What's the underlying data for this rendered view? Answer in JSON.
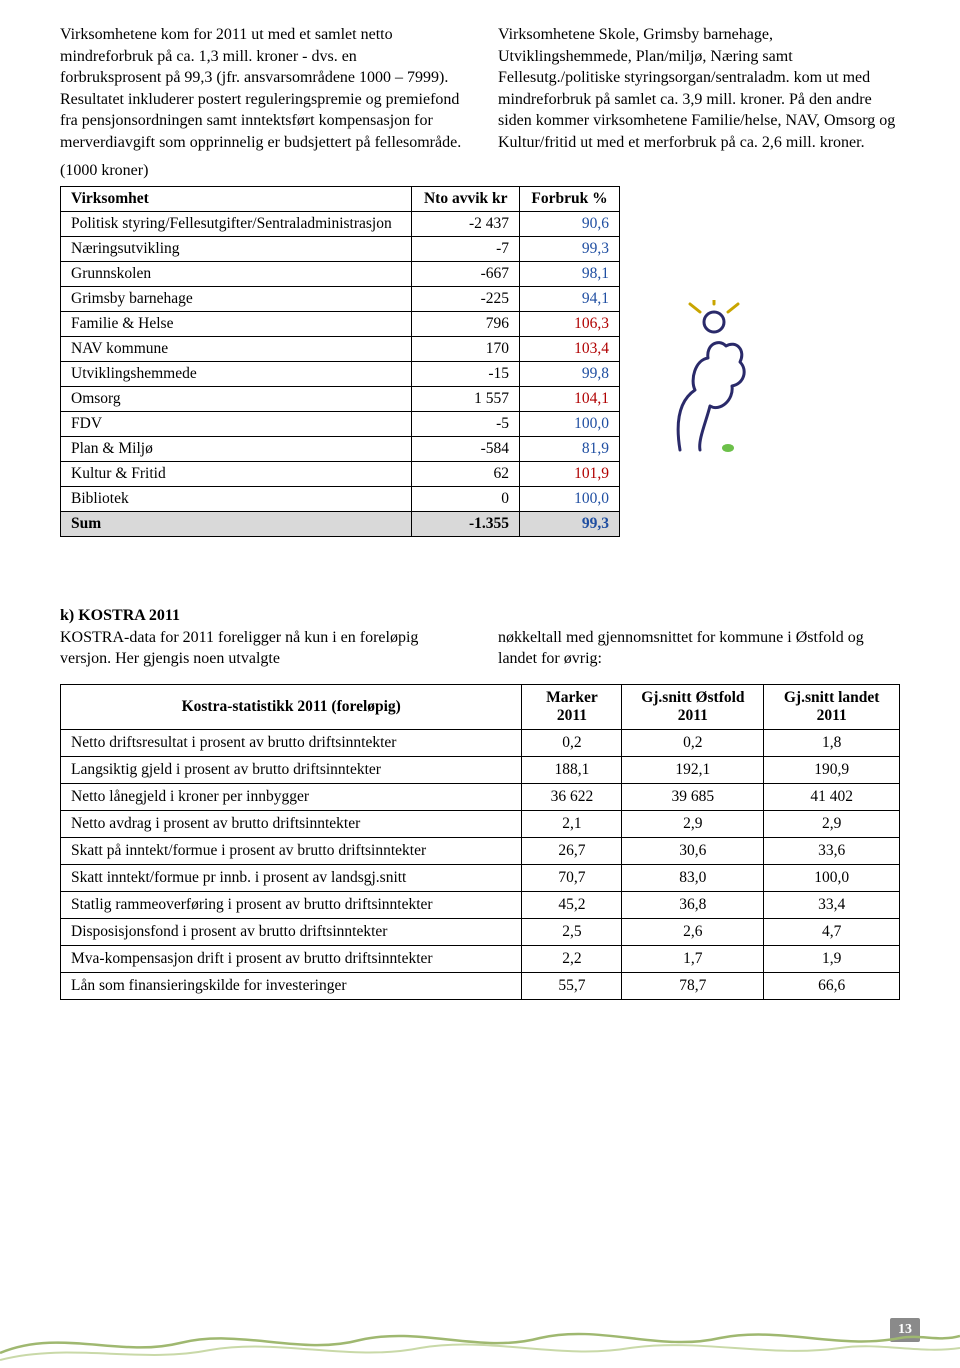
{
  "intro": {
    "left": "Virksomhetene kom for 2011 ut med et samlet netto mindreforbruk på ca. 1,3 mill. kroner - dvs. en forbruksprosent på 99,3 (jfr. ansvars­områdene 1000 – 7999). Resultatet inkluderer postert reguleringspremie og premiefond fra pensjonsordningen samt inntektsført kompen­sasjon for merverdiavgift som opprinnelig er budsjettert på fellesområde.",
    "right": "Virksomhetene Skole, Grimsby barnehage, Utviklingshemmede, Plan/miljø, Næring samt Fellesutg./politiske styringsorgan/sentraladm. kom ut med mindreforbruk på samlet ca. 3,9 mill. kroner. På den andre siden kommer virksomhetene Familie/helse, NAV, Omsorg og Kultur/fritid ut med et merforbruk på ca. 2,6 mill. kroner.",
    "note": "(1000 kroner)"
  },
  "table1": {
    "headers": {
      "h1": "Virksomhet",
      "h2": "Nto avvik kr",
      "h3": "Forbruk %"
    },
    "rows": [
      {
        "label": "Politisk styring/Fellesutgifter/Sentraladministrasjon",
        "avvik": "-2 437",
        "forbruk": "90,6",
        "color": "blue"
      },
      {
        "label": "Næringsutvikling",
        "avvik": "-7",
        "forbruk": "99,3",
        "color": "blue"
      },
      {
        "label": "Grunnskolen",
        "avvik": "-667",
        "forbruk": "98,1",
        "color": "blue"
      },
      {
        "label": "Grimsby barnehage",
        "avvik": "-225",
        "forbruk": "94,1",
        "color": "blue"
      },
      {
        "label": "Familie & Helse",
        "avvik": "796",
        "forbruk": "106,3",
        "color": "red"
      },
      {
        "label": "NAV kommune",
        "avvik": "170",
        "forbruk": "103,4",
        "color": "red"
      },
      {
        "label": "Utviklingshemmede",
        "avvik": "-15",
        "forbruk": "99,8",
        "color": "blue"
      },
      {
        "label": "Omsorg",
        "avvik": "1 557",
        "forbruk": "104,1",
        "color": "red"
      },
      {
        "label": "FDV",
        "avvik": "-5",
        "forbruk": "100,0",
        "color": "blue"
      },
      {
        "label": "Plan & Miljø",
        "avvik": "-584",
        "forbruk": "81,9",
        "color": "blue"
      },
      {
        "label": "Kultur & Fritid",
        "avvik": "62",
        "forbruk": "101,9",
        "color": "red"
      },
      {
        "label": "Bibliotek",
        "avvik": "0",
        "forbruk": "100,0",
        "color": "blue"
      }
    ],
    "sum": {
      "label": "Sum",
      "avvik": "-1.355",
      "forbruk": "99,3"
    }
  },
  "kostra": {
    "title": "k) KOSTRA 2011",
    "left": "KOSTRA-data for 2011 foreligger nå kun i en foreløpig versjon. Her gjengis noen utvalgte",
    "right": "nøkkeltall med gjennomsnittet for kommune i Østfold og landet for øvrig:"
  },
  "table2": {
    "headers": {
      "h1": "Kostra-statistikk 2011 (foreløpig)",
      "h2": "Marker 2011",
      "h3": "Gj.snitt Østfold 2011",
      "h4": "Gj.snitt landet 2011"
    },
    "rows": [
      {
        "label": "Netto driftsresultat i prosent av brutto driftsinntekter",
        "c2": "0,2",
        "c3": "0,2",
        "c4": "1,8"
      },
      {
        "label": "Langsiktig gjeld i prosent av brutto driftsinntekter",
        "c2": "188,1",
        "c3": "192,1",
        "c4": "190,9"
      },
      {
        "label": "Netto lånegjeld i kroner per innbygger",
        "c2": "36 622",
        "c3": "39 685",
        "c4": "41 402"
      },
      {
        "label": "Netto avdrag i prosent av brutto driftsinntekter",
        "c2": "2,1",
        "c3": "2,9",
        "c4": "2,9"
      },
      {
        "label": "Skatt på inntekt/formue i prosent av brutto driftsinntekter",
        "c2": "26,7",
        "c3": "30,6",
        "c4": "33,6"
      },
      {
        "label": "Skatt inntekt/formue pr innb. i prosent av landsgj.snitt",
        "c2": "70,7",
        "c3": "83,0",
        "c4": "100,0"
      },
      {
        "label": "Statlig rammeoverføring i prosent av brutto driftsinntekter",
        "c2": "45,2",
        "c3": "36,8",
        "c4": "33,4"
      },
      {
        "label": "Disposisjonsfond i prosent av brutto driftsinntekter",
        "c2": "2,5",
        "c3": "2,6",
        "c4": "4,7"
      },
      {
        "label": "Mva-kompensasjon drift i prosent av brutto driftsinntekter",
        "c2": "2,2",
        "c3": "1,7",
        "c4": "1,9"
      },
      {
        "label": "Lån som finansieringskilde for investeringer",
        "c2": "55,7",
        "c3": "78,7",
        "c4": "66,6"
      }
    ]
  },
  "pageNumber": "13",
  "colors": {
    "blue": "#1f4ea1",
    "red": "#b00000",
    "sumbg": "#d9d9d9",
    "badge": "#8a8a8a"
  }
}
